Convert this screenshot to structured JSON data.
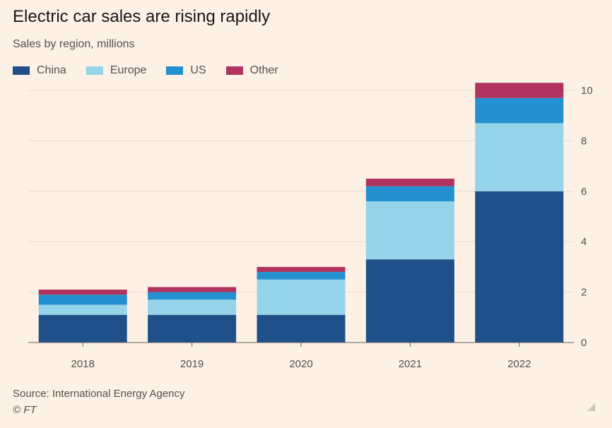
{
  "chart_data": {
    "type": "bar",
    "stacked": true,
    "title": "Electric car sales are rising rapidly",
    "subtitle": "Sales by region, millions",
    "categories": [
      "2018",
      "2019",
      "2020",
      "2021",
      "2022"
    ],
    "series": [
      {
        "name": "China",
        "color": "#1f5089",
        "values": [
          1.1,
          1.1,
          1.1,
          3.3,
          6.0
        ]
      },
      {
        "name": "Europe",
        "color": "#96d4e9",
        "values": [
          0.4,
          0.6,
          1.4,
          2.3,
          2.7
        ]
      },
      {
        "name": "US",
        "color": "#2390cf",
        "values": [
          0.4,
          0.3,
          0.3,
          0.6,
          1.0
        ]
      },
      {
        "name": "Other",
        "color": "#b0345f",
        "values": [
          0.2,
          0.2,
          0.2,
          0.3,
          0.6
        ]
      }
    ],
    "yaxis": {
      "position": "right",
      "min": 0,
      "max": 10,
      "ticks": [
        0,
        2,
        4,
        6,
        8,
        10
      ]
    },
    "grid": true,
    "legend_position": "top-left",
    "source": "Source: International Energy Agency",
    "copyright": "© FT"
  }
}
